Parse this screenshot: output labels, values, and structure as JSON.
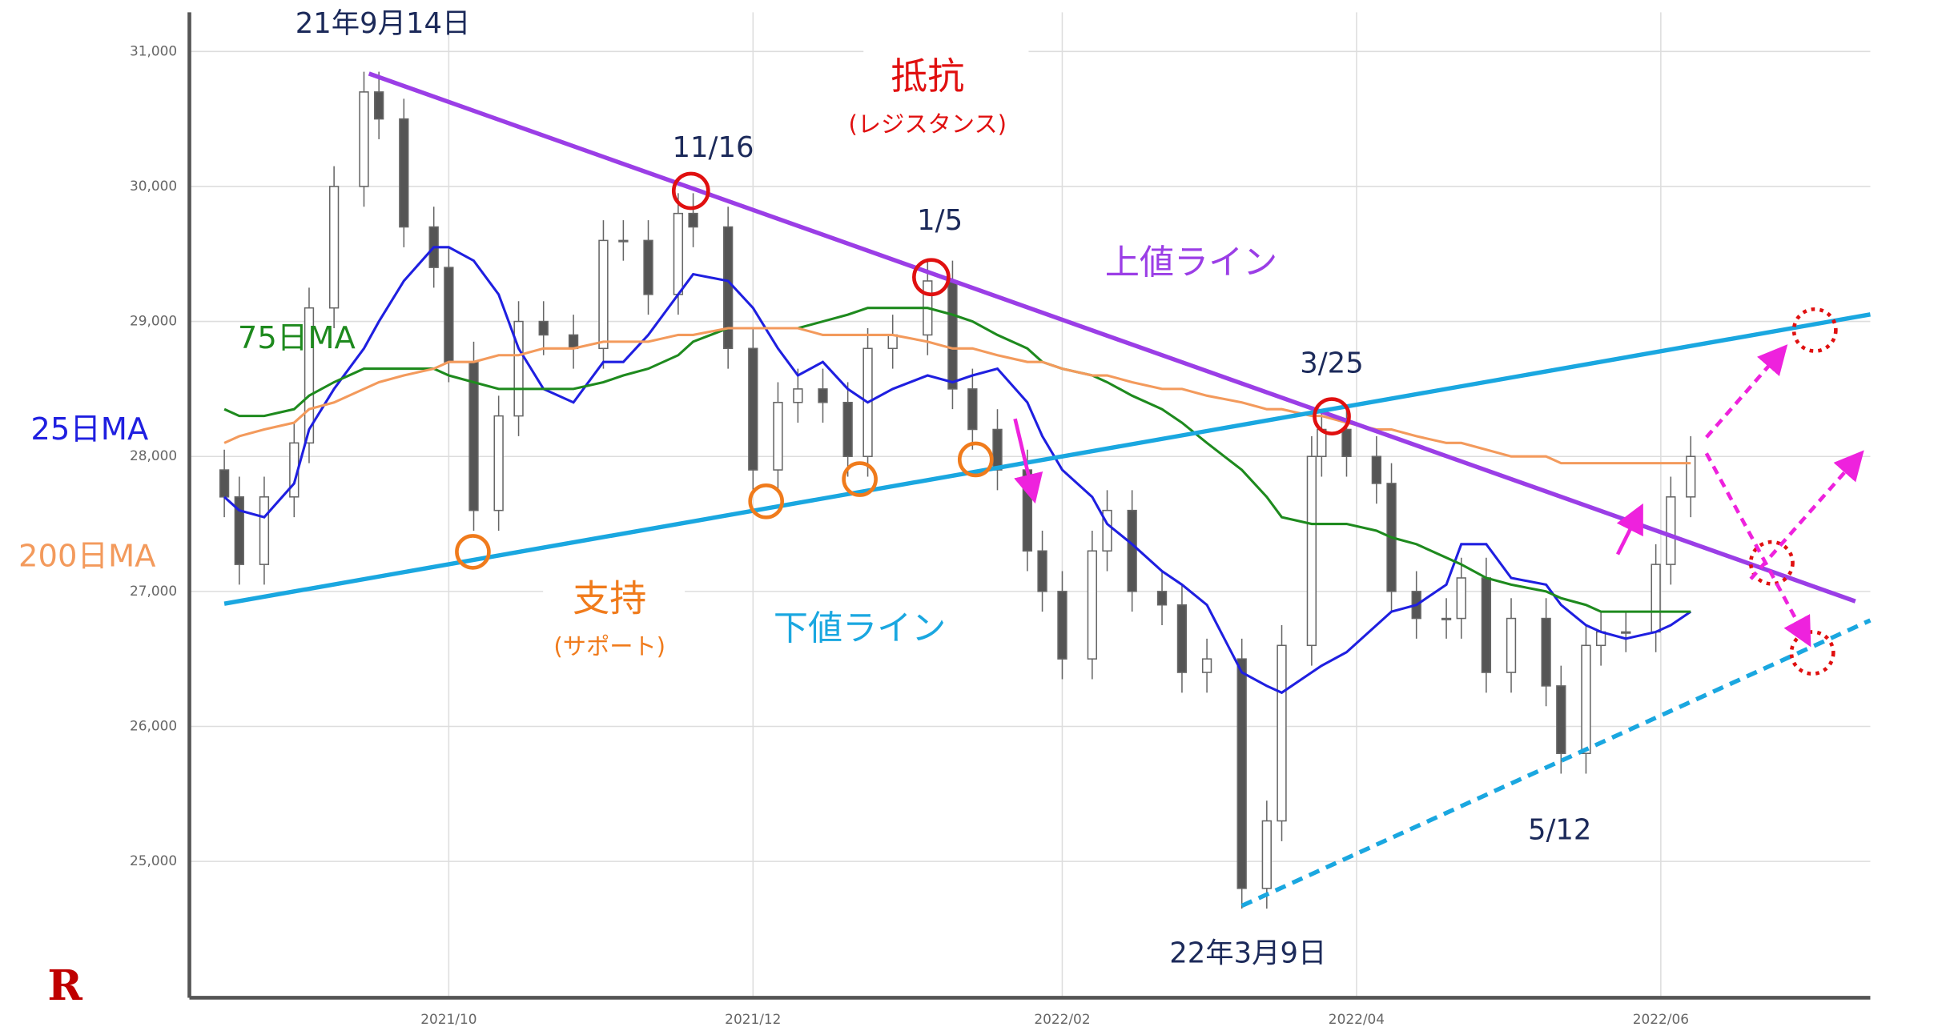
{
  "chart_data": {
    "type": "candlestick",
    "logo": "R",
    "x": [
      "2021-08-17",
      "2021-08-20",
      "2021-08-25",
      "2021-08-31",
      "2021-09-03",
      "2021-09-08",
      "2021-09-14",
      "2021-09-17",
      "2021-09-22",
      "2021-09-28",
      "2021-10-01",
      "2021-10-06",
      "2021-10-11",
      "2021-10-15",
      "2021-10-20",
      "2021-10-26",
      "2021-11-01",
      "2021-11-05",
      "2021-11-10",
      "2021-11-16",
      "2021-11-19",
      "2021-11-26",
      "2021-12-01",
      "2021-12-06",
      "2021-12-10",
      "2021-12-15",
      "2021-12-20",
      "2021-12-24",
      "2021-12-29",
      "2022-01-05",
      "2022-01-10",
      "2022-01-14",
      "2022-01-19",
      "2022-01-25",
      "2022-01-28",
      "2022-02-01",
      "2022-02-07",
      "2022-02-10",
      "2022-02-15",
      "2022-02-21",
      "2022-02-25",
      "2022-03-02",
      "2022-03-09",
      "2022-03-14",
      "2022-03-17",
      "2022-03-23",
      "2022-03-25",
      "2022-03-30",
      "2022-04-05",
      "2022-04-08",
      "2022-04-13",
      "2022-04-19",
      "2022-04-22",
      "2022-04-27",
      "2022-05-02",
      "2022-05-09",
      "2022-05-12",
      "2022-05-17",
      "2022-05-20",
      "2022-05-25",
      "2022-05-31",
      "2022-06-03",
      "2022-06-07"
    ],
    "open": [
      27900,
      27700,
      27200,
      27700,
      28100,
      29100,
      30000,
      30700,
      30500,
      29700,
      29400,
      28700,
      27600,
      28300,
      29000,
      28900,
      28800,
      29600,
      29600,
      29200,
      29800,
      29700,
      28800,
      27900,
      28400,
      28500,
      28400,
      28000,
      28800,
      28900,
      29300,
      28500,
      28200,
      27900,
      27300,
      27000,
      26500,
      27300,
      27600,
      27000,
      26900,
      26400,
      26500,
      24800,
      25300,
      26600,
      28000,
      28200,
      28000,
      27800,
      27000,
      26800,
      26800,
      27100,
      26400,
      26800,
      26300,
      25800,
      26600,
      26700,
      26700,
      27200,
      27700
    ],
    "high": [
      28050,
      27850,
      27850,
      28250,
      29250,
      30150,
      30850,
      30850,
      30650,
      29850,
      29550,
      28850,
      28450,
      29150,
      29150,
      29050,
      29750,
      29750,
      29750,
      29950,
      29950,
      29850,
      28950,
      28550,
      28650,
      28650,
      28550,
      28950,
      29050,
      29450,
      29450,
      28650,
      28350,
      28050,
      27450,
      27150,
      27450,
      27750,
      27750,
      27150,
      27050,
      26650,
      26650,
      25450,
      26750,
      28150,
      28350,
      28350,
      28150,
      27950,
      27150,
      26950,
      27250,
      27250,
      26950,
      26950,
      26450,
      26750,
      26850,
      26850,
      27350,
      27850,
      28150
    ],
    "low": [
      27550,
      27050,
      27050,
      27550,
      27950,
      28950,
      29850,
      30350,
      29550,
      29250,
      28550,
      27450,
      27450,
      28150,
      28750,
      28650,
      28650,
      29450,
      29050,
      29050,
      29550,
      28650,
      27750,
      27750,
      28250,
      28250,
      27850,
      27850,
      28650,
      28750,
      28350,
      28050,
      27750,
      27150,
      26850,
      26350,
      26350,
      27150,
      26850,
      26750,
      26250,
      26250,
      24650,
      24650,
      25150,
      26450,
      27850,
      27850,
      27650,
      26850,
      26650,
      26650,
      26650,
      26250,
      26250,
      26150,
      25650,
      25650,
      26450,
      26550,
      26550,
      27050,
      27550
    ],
    "close": [
      27700,
      27200,
      27700,
      28100,
      29100,
      30000,
      30700,
      30500,
      29700,
      29400,
      28700,
      27600,
      28300,
      29000,
      28900,
      28800,
      29600,
      29600,
      29200,
      29800,
      29700,
      28800,
      27900,
      28400,
      28500,
      28400,
      28000,
      28800,
      28900,
      29300,
      28500,
      28200,
      27900,
      27300,
      27000,
      26500,
      27300,
      27600,
      27000,
      26900,
      26400,
      26500,
      24800,
      25300,
      26600,
      28000,
      28200,
      28000,
      27800,
      27000,
      26800,
      26800,
      27100,
      26400,
      26800,
      26300,
      25800,
      26600,
      26700,
      26700,
      27200,
      27700,
      28000
    ],
    "series": [
      {
        "name": "25日MA",
        "color": "#1f1fe0",
        "values": [
          27700,
          27600,
          27550,
          27800,
          28200,
          28500,
          28800,
          29000,
          29300,
          29550,
          29550,
          29450,
          29200,
          28800,
          28500,
          28400,
          28700,
          28700,
          28900,
          29200,
          29350,
          29300,
          29100,
          28800,
          28600,
          28700,
          28500,
          28400,
          28500,
          28600,
          28550,
          28600,
          28650,
          28400,
          28150,
          27900,
          27700,
          27500,
          27350,
          27150,
          27050,
          26900,
          26400,
          26300,
          26250,
          26400,
          26450,
          26550,
          26750,
          26850,
          26900,
          27050,
          27350,
          27350,
          27100,
          27050,
          26900,
          26750,
          26700,
          26650,
          26700,
          26750,
          26850
        ]
      },
      {
        "name": "75日MA",
        "color": "#1e8a1e",
        "values": [
          28350,
          28300,
          28300,
          28350,
          28450,
          28550,
          28650,
          28650,
          28650,
          28650,
          28600,
          28550,
          28500,
          28500,
          28500,
          28500,
          28550,
          28600,
          28650,
          28750,
          28850,
          28950,
          28950,
          28950,
          28950,
          29000,
          29050,
          29100,
          29100,
          29100,
          29050,
          29000,
          28900,
          28800,
          28700,
          28650,
          28600,
          28550,
          28450,
          28350,
          28250,
          28100,
          27900,
          27700,
          27550,
          27500,
          27500,
          27500,
          27450,
          27400,
          27350,
          27250,
          27200,
          27100,
          27050,
          27000,
          26950,
          26900,
          26850,
          26850,
          26850,
          26850,
          26850
        ]
      },
      {
        "name": "200日MA",
        "color": "#f39a5c",
        "values": [
          28100,
          28150,
          28200,
          28250,
          28350,
          28400,
          28500,
          28550,
          28600,
          28650,
          28700,
          28700,
          28750,
          28750,
          28800,
          28800,
          28850,
          28850,
          28850,
          28900,
          28900,
          28950,
          28950,
          28950,
          28950,
          28900,
          28900,
          28900,
          28900,
          28850,
          28800,
          28800,
          28750,
          28700,
          28700,
          28650,
          28600,
          28600,
          28550,
          28500,
          28500,
          28450,
          28400,
          28350,
          28350,
          28300,
          28300,
          28250,
          28200,
          28200,
          28150,
          28100,
          28100,
          28050,
          28000,
          28000,
          27950,
          27950,
          27950,
          27950,
          27950,
          27950,
          27950
        ]
      }
    ],
    "lines": [
      {
        "name": "上値ライン",
        "color": "#9b3ee6",
        "x": [
          "2021-09-15",
          "2022-07-10"
        ],
        "values": [
          30836,
          26927
        ]
      },
      {
        "name": "下値ライン",
        "color": "#1aa7e0",
        "x": [
          "2021-08-17",
          "2022-07-13"
        ],
        "values": [
          26909,
          29052
        ]
      },
      {
        "color": "#1aa7e0",
        "dashed": true,
        "x": [
          "2022-03-09",
          "2022-07-13"
        ],
        "values": [
          24671,
          26786
        ]
      }
    ],
    "annotations": [
      "21年9月14日",
      "抵抗",
      "(レジスタンス)",
      "11/16",
      "1/5",
      "3/25",
      "支持",
      "(サポート)",
      "5/12",
      "22年3月9日"
    ],
    "xlim": [
      "2021-08-10",
      "2022-07-13"
    ],
    "xticks": [
      {
        "value": "2021-10-01",
        "label": "2021/10"
      },
      {
        "value": "2021-12-01",
        "label": "2021/12"
      },
      {
        "value": "2022-02-01",
        "label": "2022/02"
      },
      {
        "value": "2022-04-01",
        "label": "2022/04"
      },
      {
        "value": "2022-06-01",
        "label": "2022/06"
      }
    ],
    "ylim": [
      23990,
      31290
    ],
    "yticks": [
      {
        "value": 25000,
        "label": "25,000"
      },
      {
        "value": 26000,
        "label": "26,000"
      },
      {
        "value": 27000,
        "label": "27,000"
      },
      {
        "value": 28000,
        "label": "28,000"
      },
      {
        "value": 29000,
        "label": "29,000"
      },
      {
        "value": 30000,
        "label": "30,000"
      },
      {
        "value": 31000,
        "label": "31,000"
      }
    ],
    "grid": true
  }
}
